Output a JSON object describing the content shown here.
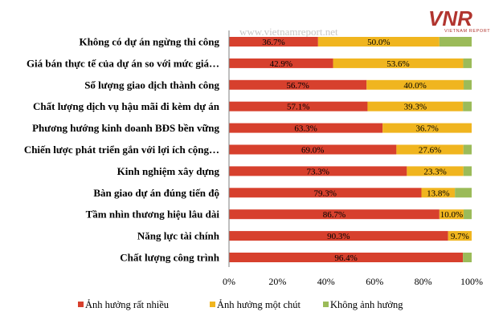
{
  "watermark": "www.vietnamreport.net",
  "logo": {
    "mark": "VNR",
    "subtitle": "VIETNAM REPORT"
  },
  "colors": {
    "series1": "#d7402d",
    "series2": "#f0b51f",
    "series3": "#9bbb59",
    "axis": "#7f7f7f"
  },
  "chart_data": {
    "type": "bar",
    "orientation": "horizontal",
    "stacked": true,
    "categories": [
      "Không có dự án ngừng thi công",
      "Giá bán thực tế của dự án so với mức giá…",
      "Số lượng giao dịch thành công",
      "Chất lượng dịch vụ hậu mãi đi kèm dự án",
      "Phương hướng kinh doanh BĐS bền vững",
      "Chiến lược phát triển gắn với lợi ích cộng…",
      "Kinh nghiệm xây dựng",
      "Bàn giao dự án đúng tiến độ",
      "Tầm nhìn thương hiệu lâu dài",
      "Năng lực tài chính",
      "Chất lượng công trình"
    ],
    "series": [
      {
        "name": "Ảnh hưởng rất nhiều",
        "values": [
          36.7,
          42.9,
          56.7,
          57.1,
          63.3,
          69.0,
          73.3,
          79.3,
          86.7,
          90.3,
          96.4
        ],
        "labels": [
          "36.7%",
          "42.9%",
          "56.7%",
          "57.1%",
          "63.3%",
          "69.0%",
          "73.3%",
          "79.3%",
          "86.7%",
          "90.3%",
          "96.4%"
        ]
      },
      {
        "name": "Ảnh hưởng một chút",
        "values": [
          50.0,
          53.6,
          40.0,
          39.3,
          36.7,
          27.6,
          23.3,
          13.8,
          10.0,
          9.7,
          0
        ],
        "labels": [
          "50.0%",
          "53.6%",
          "40.0%",
          "39.3%",
          "36.7%",
          "27.6%",
          "23.3%",
          "13.8%",
          "10.0%",
          "9.7%",
          ""
        ]
      },
      {
        "name": "Không ảnh hưởng",
        "values": [
          13.3,
          3.5,
          3.3,
          3.6,
          0,
          3.4,
          3.4,
          6.9,
          3.3,
          0,
          3.6
        ],
        "labels": [
          "",
          "",
          "",
          "",
          "",
          "",
          "",
          "",
          "",
          "",
          ""
        ]
      }
    ],
    "xlim": [
      0,
      100
    ],
    "xticks": [
      "0%",
      "20%",
      "40%",
      "60%",
      "80%",
      "100%"
    ],
    "grid": false,
    "legend_position": "bottom"
  }
}
